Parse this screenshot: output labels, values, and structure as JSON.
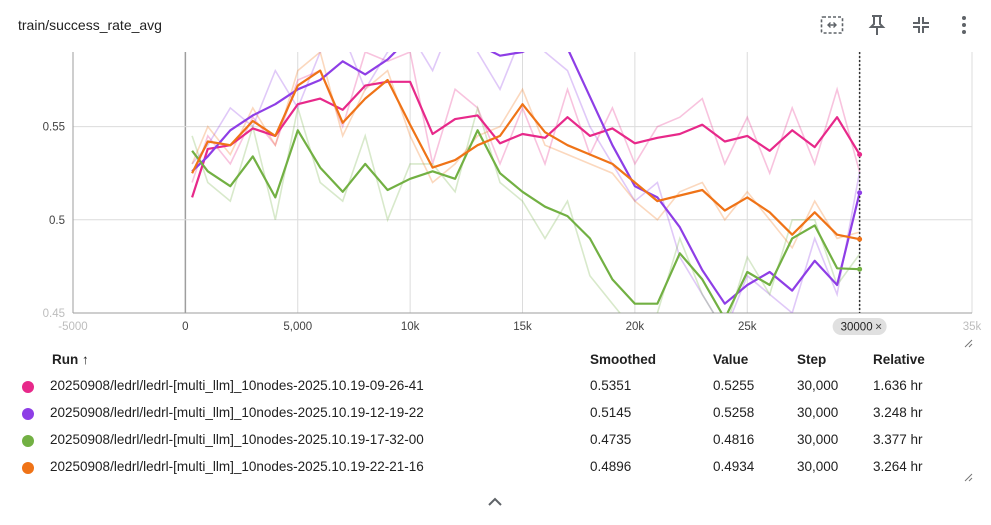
{
  "header": {
    "title": "train/success_rate_avg"
  },
  "toolbar": {
    "icons": [
      "fit-to-data-icon",
      "pin-icon",
      "collapse-icon",
      "more-vert-icon"
    ]
  },
  "chart_data": {
    "type": "line",
    "xlabel": "",
    "ylabel": "",
    "xlim": [
      -5000,
      35000
    ],
    "ylim": [
      0.45,
      0.59
    ],
    "x_ticks": [
      "-5000",
      "0",
      "5,000",
      "10k",
      "15k",
      "20k",
      "25k",
      "30k",
      "35k"
    ],
    "y_ticks": [
      {
        "value": 0.45,
        "label": "0.45"
      },
      {
        "value": 0.5,
        "label": "0.5"
      },
      {
        "value": 0.55,
        "label": "0.55"
      }
    ],
    "hover_step_label": "30000",
    "grid": true,
    "series": [
      {
        "name": "20250908/ledrl/ledrl-[multi_llm]_10nodes-2025.10.19-09-26-41",
        "color": "#e7298a",
        "x": [
          300,
          1000,
          2000,
          3000,
          4000,
          5000,
          6000,
          7000,
          8000,
          9000,
          10000,
          11000,
          12000,
          13000,
          14000,
          15000,
          16000,
          17000,
          18000,
          19000,
          20000,
          21000,
          22000,
          23000,
          24000,
          25000,
          26000,
          27000,
          28000,
          29000,
          30000
        ],
        "smoothed": [
          0.512,
          0.538,
          0.54,
          0.549,
          0.545,
          0.562,
          0.565,
          0.559,
          0.572,
          0.574,
          0.574,
          0.546,
          0.554,
          0.556,
          0.541,
          0.546,
          0.544,
          0.555,
          0.545,
          0.549,
          0.541,
          0.544,
          0.546,
          0.551,
          0.542,
          0.545,
          0.537,
          0.548,
          0.539,
          0.555,
          0.535
        ],
        "value": [
          0.52,
          0.545,
          0.53,
          0.555,
          0.54,
          0.575,
          0.58,
          0.55,
          0.59,
          0.585,
          0.59,
          0.53,
          0.57,
          0.56,
          0.53,
          0.56,
          0.53,
          0.57,
          0.535,
          0.56,
          0.53,
          0.55,
          0.555,
          0.565,
          0.53,
          0.555,
          0.525,
          0.56,
          0.53,
          0.57,
          0.5255
        ],
        "step": "30,000",
        "relative": "1.636 hr"
      },
      {
        "name": "20250908/ledrl/ledrl-[multi_llm]_10nodes-2025.10.19-12-19-22",
        "color": "#8e3ee6",
        "x": [
          300,
          1000,
          2000,
          3000,
          4000,
          5000,
          6000,
          7000,
          8000,
          9000,
          10000,
          11000,
          12000,
          13000,
          14000,
          15000,
          16000,
          17000,
          18000,
          19000,
          20000,
          21000,
          22000,
          23000,
          24000,
          25000,
          26000,
          27000,
          28000,
          29000,
          30000
        ],
        "smoothed": [
          0.526,
          0.534,
          0.548,
          0.556,
          0.562,
          0.57,
          0.575,
          0.585,
          0.578,
          0.586,
          0.598,
          0.592,
          0.6,
          0.594,
          0.588,
          0.59,
          0.596,
          0.592,
          0.566,
          0.54,
          0.518,
          0.512,
          0.496,
          0.473,
          0.455,
          0.465,
          0.472,
          0.462,
          0.478,
          0.465,
          0.5145
        ],
        "value": [
          0.53,
          0.54,
          0.56,
          0.55,
          0.58,
          0.56,
          0.59,
          0.6,
          0.57,
          0.59,
          0.6,
          0.58,
          0.61,
          0.59,
          0.57,
          0.6,
          0.59,
          0.58,
          0.55,
          0.53,
          0.51,
          0.52,
          0.48,
          0.46,
          0.44,
          0.47,
          0.46,
          0.45,
          0.49,
          0.46,
          0.5258
        ],
        "step": "30,000",
        "relative": "3.248 hr"
      },
      {
        "name": "20250908/ledrl/ledrl-[multi_llm]_10nodes-2025.10.19-17-32-00",
        "color": "#72b043",
        "x": [
          300,
          1000,
          2000,
          3000,
          4000,
          5000,
          6000,
          7000,
          8000,
          9000,
          10000,
          11000,
          12000,
          13000,
          14000,
          15000,
          16000,
          17000,
          18000,
          19000,
          20000,
          21000,
          22000,
          23000,
          24000,
          25000,
          26000,
          27000,
          28000,
          29000,
          30000
        ],
        "smoothed": [
          0.537,
          0.526,
          0.518,
          0.534,
          0.512,
          0.548,
          0.528,
          0.515,
          0.53,
          0.516,
          0.522,
          0.526,
          0.522,
          0.548,
          0.525,
          0.515,
          0.507,
          0.502,
          0.49,
          0.468,
          0.455,
          0.455,
          0.482,
          0.468,
          0.447,
          0.472,
          0.465,
          0.49,
          0.497,
          0.474,
          0.4735
        ],
        "value": [
          0.545,
          0.52,
          0.51,
          0.55,
          0.5,
          0.56,
          0.52,
          0.51,
          0.545,
          0.5,
          0.53,
          0.53,
          0.515,
          0.56,
          0.52,
          0.51,
          0.49,
          0.51,
          0.47,
          0.455,
          0.44,
          0.45,
          0.49,
          0.46,
          0.44,
          0.48,
          0.46,
          0.5,
          0.5,
          0.465,
          0.4816
        ],
        "step": "30,000",
        "relative": "3.377 hr"
      },
      {
        "name": "20250908/ledrl/ledrl-[multi_llm]_10nodes-2025.10.19-22-21-16",
        "color": "#ef7317",
        "x": [
          300,
          1000,
          2000,
          3000,
          4000,
          5000,
          6000,
          7000,
          8000,
          9000,
          10000,
          11000,
          12000,
          13000,
          14000,
          15000,
          16000,
          17000,
          18000,
          19000,
          20000,
          21000,
          22000,
          23000,
          24000,
          25000,
          26000,
          27000,
          28000,
          29000,
          30000
        ],
        "smoothed": [
          0.525,
          0.542,
          0.54,
          0.553,
          0.545,
          0.572,
          0.58,
          0.552,
          0.565,
          0.575,
          0.551,
          0.528,
          0.532,
          0.54,
          0.545,
          0.562,
          0.547,
          0.54,
          0.535,
          0.53,
          0.52,
          0.51,
          0.513,
          0.516,
          0.505,
          0.512,
          0.504,
          0.492,
          0.504,
          0.492,
          0.4896
        ],
        "value": [
          0.53,
          0.55,
          0.535,
          0.56,
          0.54,
          0.58,
          0.59,
          0.545,
          0.57,
          0.58,
          0.545,
          0.52,
          0.53,
          0.545,
          0.55,
          0.57,
          0.54,
          0.535,
          0.53,
          0.525,
          0.51,
          0.5,
          0.515,
          0.52,
          0.5,
          0.515,
          0.5,
          0.485,
          0.51,
          0.49,
          0.4934
        ],
        "step": "30,000",
        "relative": "3.264 hr"
      }
    ]
  },
  "table": {
    "headers": {
      "run": "Run ↑",
      "smoothed": "Smoothed",
      "value": "Value",
      "step": "Step",
      "relative": "Relative"
    },
    "rows": [
      {
        "color": "#e7298a",
        "run": "20250908/ledrl/ledrl-[multi_llm]_10nodes-2025.10.19-09-26-41",
        "smoothed": "0.5351",
        "value": "0.5255",
        "step": "30,000",
        "relative": "1.636 hr"
      },
      {
        "color": "#8e3ee6",
        "run": "20250908/ledrl/ledrl-[multi_llm]_10nodes-2025.10.19-12-19-22",
        "smoothed": "0.5145",
        "value": "0.5258",
        "step": "30,000",
        "relative": "3.248 hr"
      },
      {
        "color": "#72b043",
        "run": "20250908/ledrl/ledrl-[multi_llm]_10nodes-2025.10.19-17-32-00",
        "smoothed": "0.4735",
        "value": "0.4816",
        "step": "30,000",
        "relative": "3.377 hr"
      },
      {
        "color": "#ef7317",
        "run": "20250908/ledrl/ledrl-[multi_llm]_10nodes-2025.10.19-22-21-16",
        "smoothed": "0.4896",
        "value": "0.4934",
        "step": "30,000",
        "relative": "3.264 hr"
      }
    ]
  },
  "footer": {
    "icon": "chevron-up-icon"
  }
}
